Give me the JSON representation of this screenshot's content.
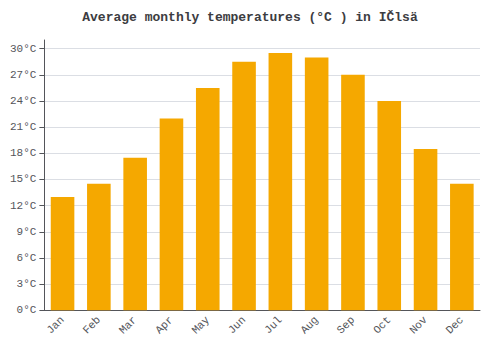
{
  "chart_data": {
    "type": "bar",
    "title": "Average monthly temperatures (°C ) in IČlsä",
    "categories": [
      "Jan",
      "Feb",
      "Mar",
      "Apr",
      "May",
      "Jun",
      "Jul",
      "Aug",
      "Sep",
      "Oct",
      "Nov",
      "Dec"
    ],
    "values": [
      13.0,
      14.5,
      17.5,
      22.0,
      25.5,
      28.5,
      29.5,
      29.0,
      27.0,
      24.0,
      18.5,
      14.5
    ],
    "color": "#F5A800",
    "ylim": [
      0,
      31
    ],
    "yticks": [
      {
        "value": 0,
        "label": "0°C"
      },
      {
        "value": 3,
        "label": "3°C"
      },
      {
        "value": 6,
        "label": "6°C"
      },
      {
        "value": 9,
        "label": "9°C"
      },
      {
        "value": 12,
        "label": "12°C"
      },
      {
        "value": 15,
        "label": "15°C"
      },
      {
        "value": 18,
        "label": "18°C"
      },
      {
        "value": 21,
        "label": "21°C"
      },
      {
        "value": 24,
        "label": "24°C"
      },
      {
        "value": 27,
        "label": "27°C"
      },
      {
        "value": 30,
        "label": "30°C"
      }
    ],
    "grid": true
  }
}
